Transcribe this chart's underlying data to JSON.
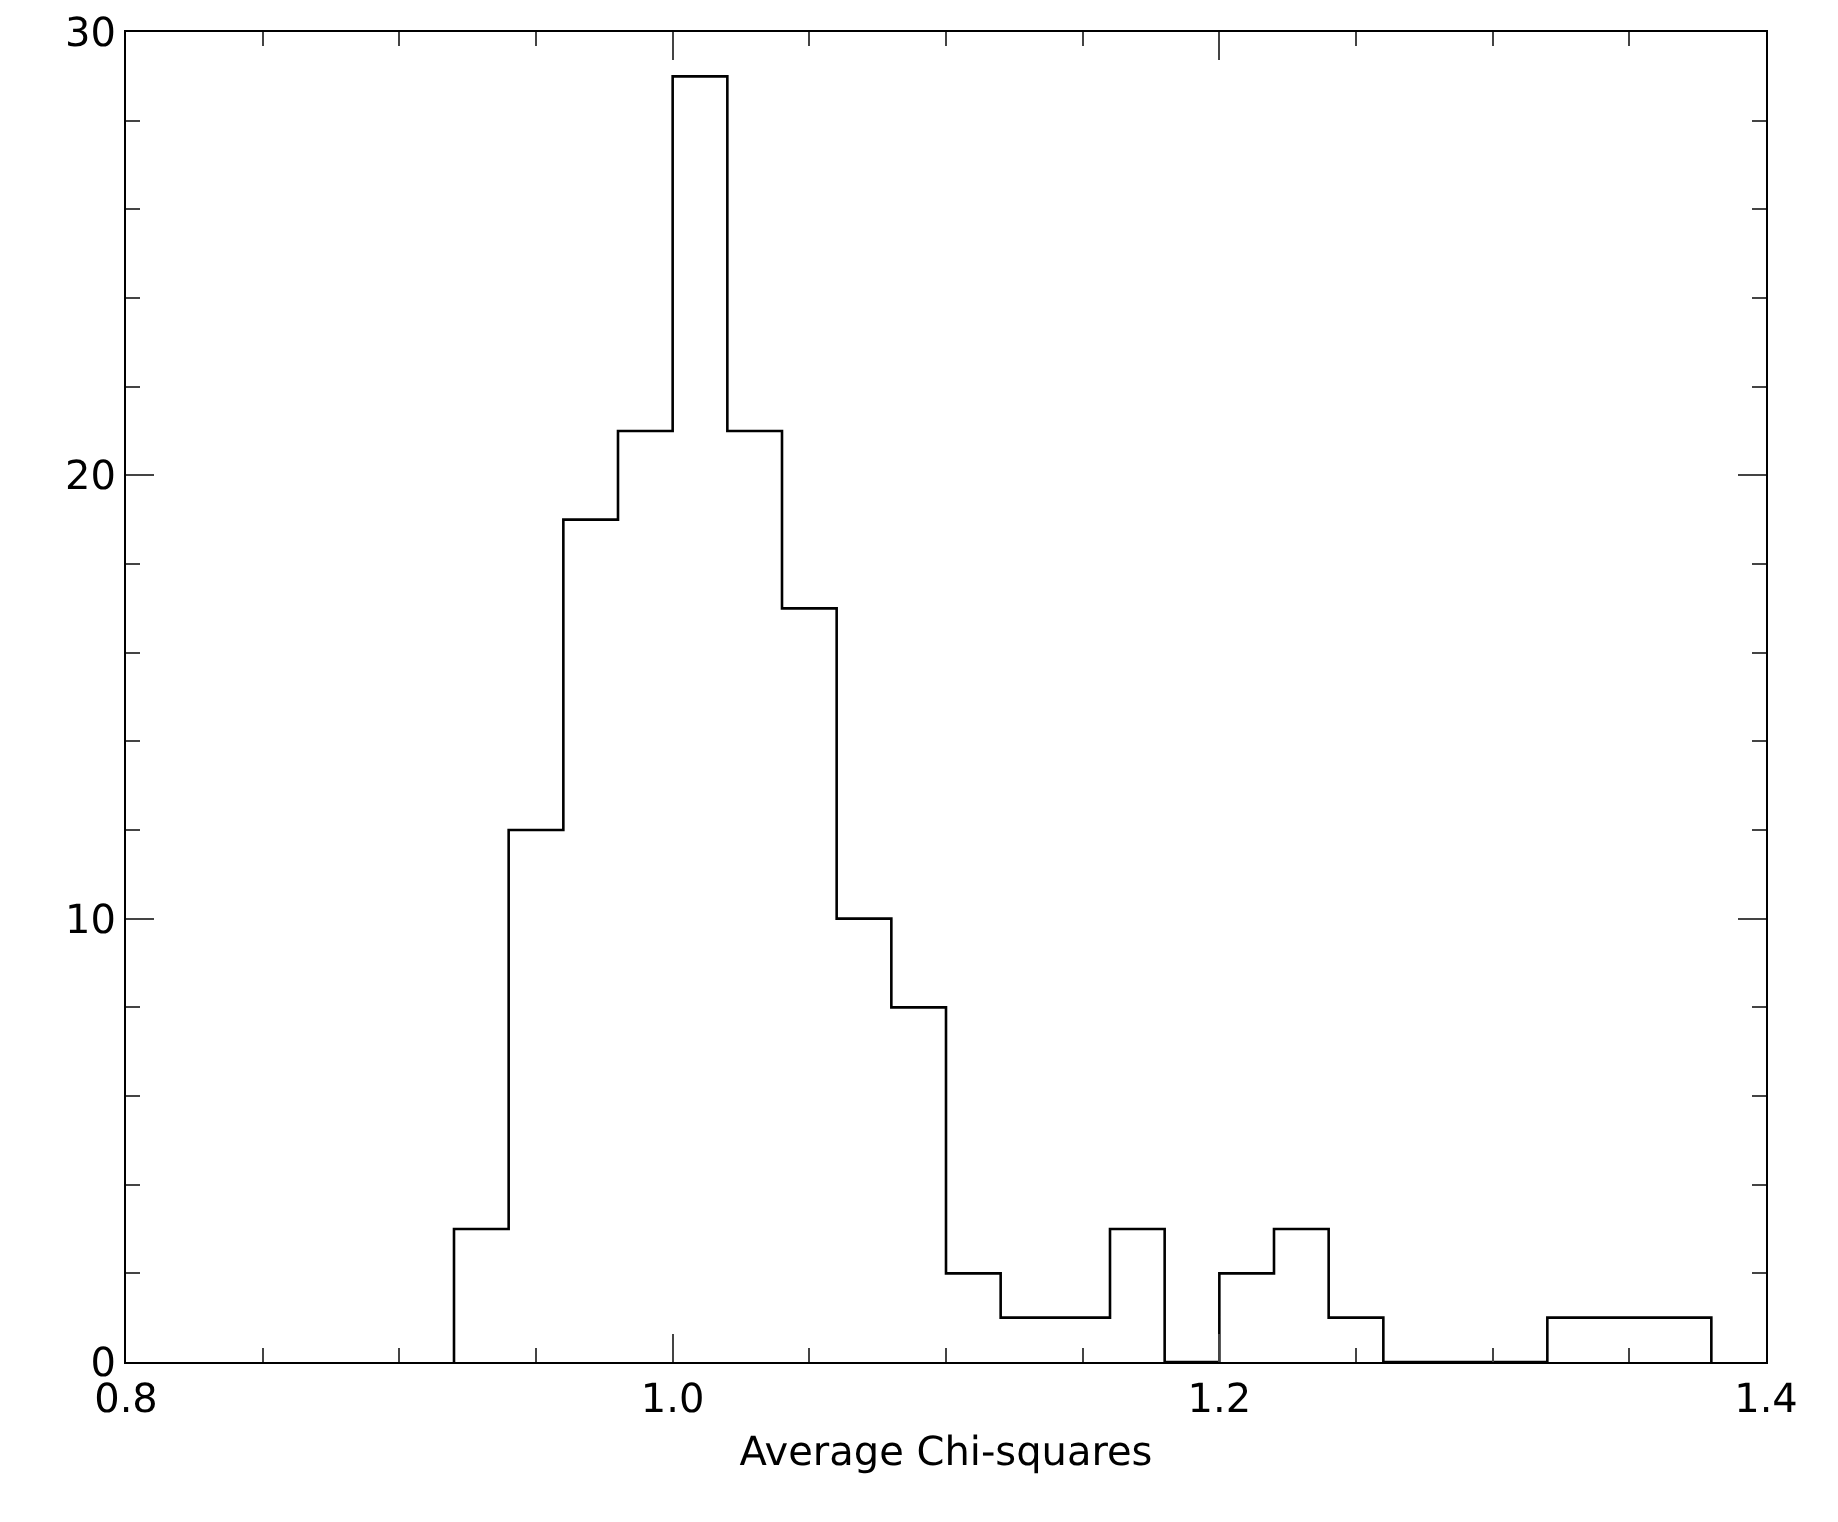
{
  "chart_data": {
    "type": "histogram",
    "xlabel": "Average Chi-squares",
    "bins": [
      0.92,
      0.94,
      0.96,
      0.98,
      1.0,
      1.02,
      1.04,
      1.06,
      1.08,
      1.1,
      1.12,
      1.14,
      1.16,
      1.18,
      1.2,
      1.22,
      1.24,
      1.26,
      1.28,
      1.3,
      1.32,
      1.34,
      1.36,
      1.38
    ],
    "values": [
      3,
      12,
      19,
      21,
      29,
      21,
      17,
      10,
      8,
      2,
      1,
      1,
      3,
      0,
      2,
      3,
      1,
      0,
      0,
      0,
      1,
      1,
      1
    ],
    "color": "#000000",
    "xlim": [
      0.8,
      1.4
    ],
    "xticks": [
      0.8,
      {
        "value": 1.0,
        "label": "1.0"
      },
      1.2,
      1.4
    ],
    "ylim": [
      0,
      30
    ],
    "yticks": [
      0,
      10,
      20,
      30
    ],
    "grid": false
  }
}
